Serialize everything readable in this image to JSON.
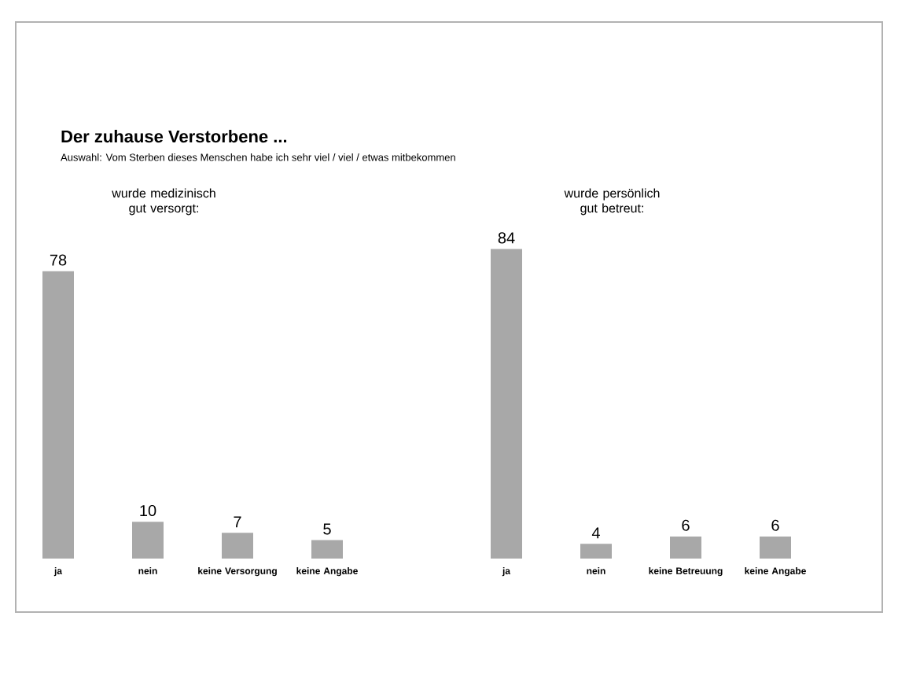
{
  "chart_data": [
    {
      "type": "other",
      "title": "Der zuhause Verstorbene ...",
      "subtitle": "Auswahl: Vom Sterben dieses Menschen habe ich sehr viel / viel / etwas mitbekommen"
    },
    {
      "type": "bar",
      "title": "wurde medizinisch gut versorgt:",
      "categories": [
        "ja",
        "nein",
        "keine Versorgung",
        "keine Angabe"
      ],
      "values": [
        78,
        10,
        7,
        5
      ],
      "color": "#a8a8a8",
      "data_labels": true
    },
    {
      "type": "bar",
      "title": "wurde persönlich gut betreut:",
      "categories": [
        "ja",
        "nein",
        "keine Betreuung",
        "keine Angabe"
      ],
      "values": [
        84,
        4,
        6,
        6
      ],
      "color": "#a8a8a8",
      "data_labels": true
    }
  ]
}
